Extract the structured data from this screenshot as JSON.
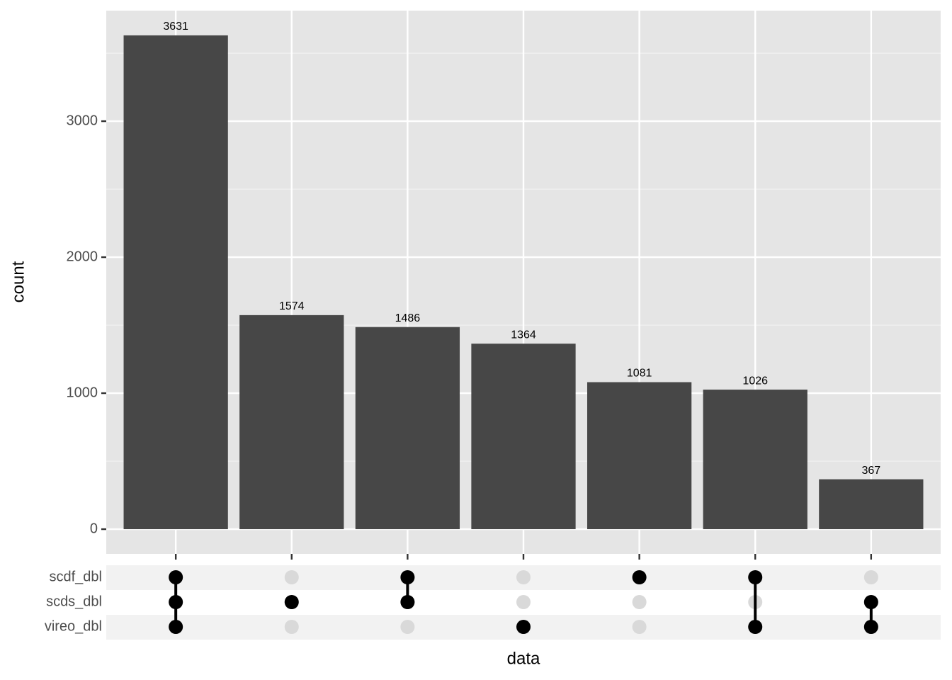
{
  "chart_data": {
    "type": "upset",
    "values": [
      3631,
      1574,
      1486,
      1364,
      1081,
      1026,
      367
    ],
    "color": "#474747",
    "ylim": [
      -182,
      3813
    ],
    "yticks": [
      0,
      1000,
      2000,
      3000
    ],
    "yminor": [
      500,
      1500,
      2500,
      3500
    ],
    "grid": true,
    "y_label": "count",
    "x_label": "data",
    "sets": [
      "scdf_dbl",
      "scds_dbl",
      "vireo_dbl"
    ],
    "intersections": [
      [
        0,
        1,
        2
      ],
      [
        1
      ],
      [
        0,
        1
      ],
      [
        2
      ],
      [
        0
      ],
      [
        0,
        2
      ],
      [
        1,
        2
      ]
    ]
  }
}
